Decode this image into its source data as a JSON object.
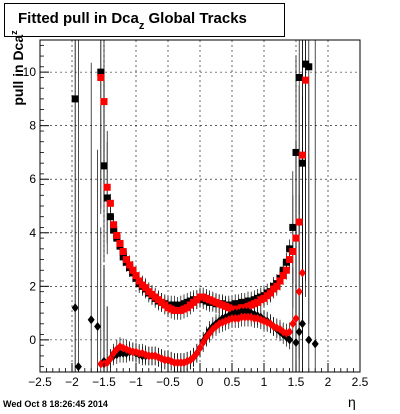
{
  "title": {
    "main": "Fitted pull in Dca",
    "sub": "z",
    "rest": "  Global Tracks"
  },
  "ylabel": {
    "main": "pull in Dca",
    "sub": "z"
  },
  "xlabel": "η",
  "timestamp": "Wed Oct  8 18:26:45 2014",
  "colors": {
    "black_series": "#000000",
    "red_series": "#ff0000",
    "grid": "#000000"
  },
  "chart_data": {
    "type": "scatter",
    "xlim": [
      -2.5,
      2.5
    ],
    "ylim": [
      -1.2,
      11.2
    ],
    "grid": true,
    "x_ticks": [
      -2.5,
      -2,
      -1.5,
      -1,
      -0.5,
      0,
      0.5,
      1,
      1.5,
      2,
      2.5
    ],
    "x_tick_labels": [
      "−2.5",
      "−2",
      "−1.5",
      "−1",
      "−0.5",
      "0",
      "0.5",
      "1",
      "1.5",
      "2",
      "2.5"
    ],
    "y_ticks": [
      0,
      2,
      4,
      6,
      8,
      10
    ],
    "y_tick_labels": [
      "0",
      "2",
      "4",
      "6",
      "8",
      "10"
    ],
    "series": [
      {
        "marker": "square",
        "color": "#000000",
        "x": [
          -1.95,
          -1.55,
          -1.5,
          -1.45,
          -1.4,
          -1.35,
          -1.3,
          -1.25,
          -1.2,
          -1.15,
          -1.1,
          -1.05,
          -1,
          -0.95,
          -0.9,
          -0.85,
          -0.8,
          -0.75,
          -0.7,
          -0.65,
          -0.6,
          -0.55,
          -0.5,
          -0.45,
          -0.4,
          -0.35,
          -0.3,
          -0.25,
          -0.2,
          -0.15,
          -0.1,
          -0.05,
          0,
          0.05,
          0.1,
          0.15,
          0.2,
          0.25,
          0.3,
          0.35,
          0.4,
          0.45,
          0.5,
          0.55,
          0.6,
          0.65,
          0.7,
          0.75,
          0.8,
          0.85,
          0.9,
          0.95,
          1,
          1.05,
          1.1,
          1.15,
          1.2,
          1.25,
          1.3,
          1.35,
          1.4,
          1.45,
          1.5,
          1.55,
          1.6,
          1.65,
          1.7
        ],
        "y": [
          9.0,
          10.0,
          6.5,
          5.3,
          4.6,
          4.1,
          3.8,
          3.5,
          3.1,
          2.9,
          2.7,
          2.5,
          2.3,
          2.1,
          2.0,
          1.9,
          1.75,
          1.65,
          1.55,
          1.45,
          1.4,
          1.35,
          1.3,
          1.3,
          1.3,
          1.25,
          1.3,
          1.35,
          1.4,
          1.45,
          1.5,
          1.5,
          1.55,
          1.5,
          1.45,
          1.4,
          1.4,
          1.35,
          1.35,
          1.35,
          1.3,
          1.3,
          1.3,
          1.35,
          1.35,
          1.4,
          1.4,
          1.45,
          1.45,
          1.5,
          1.55,
          1.6,
          1.65,
          1.75,
          1.8,
          2.0,
          2.1,
          2.3,
          2.6,
          2.9,
          3.4,
          4.2,
          7.0,
          9.8,
          6.6,
          10.3,
          10.2
        ]
      },
      {
        "marker": "square",
        "color": "#ff0000",
        "x": [
          -1.55,
          -1.5,
          -1.45,
          -1.4,
          -1.35,
          -1.3,
          -1.25,
          -1.2,
          -1.15,
          -1.1,
          -1.05,
          -1,
          -0.95,
          -0.9,
          -0.85,
          -0.8,
          -0.75,
          -0.7,
          -0.65,
          -0.6,
          -0.55,
          -0.5,
          -0.45,
          -0.4,
          -0.35,
          -0.3,
          -0.25,
          -0.2,
          -0.15,
          -0.1,
          -0.05,
          0,
          0.05,
          0.1,
          0.15,
          0.2,
          0.25,
          0.3,
          0.35,
          0.4,
          0.45,
          0.5,
          0.55,
          0.6,
          0.65,
          0.7,
          0.75,
          0.8,
          0.85,
          0.9,
          0.95,
          1,
          1.05,
          1.1,
          1.15,
          1.2,
          1.25,
          1.3,
          1.35,
          1.4,
          1.45,
          1.5,
          1.55,
          1.6,
          1.65
        ],
        "y": [
          9.8,
          8.9,
          5.7,
          5.1,
          4.3,
          3.9,
          3.6,
          3.3,
          3.0,
          2.8,
          2.6,
          2.4,
          2.2,
          2.05,
          1.95,
          1.8,
          1.7,
          1.6,
          1.5,
          1.4,
          1.3,
          1.2,
          1.15,
          1.1,
          1.1,
          1.1,
          1.15,
          1.2,
          1.3,
          1.4,
          1.5,
          1.6,
          1.6,
          1.55,
          1.5,
          1.45,
          1.4,
          1.35,
          1.3,
          1.25,
          1.2,
          1.15,
          1.15,
          1.15,
          1.2,
          1.2,
          1.25,
          1.3,
          1.35,
          1.4,
          1.5,
          1.55,
          1.65,
          1.75,
          1.9,
          2.0,
          2.2,
          2.4,
          2.6,
          3.0,
          3.3,
          3.8,
          4.4,
          6.9,
          9.7
        ]
      },
      {
        "marker": "diamond",
        "color": "#000000",
        "x": [
          -1.95,
          -1.9,
          -1.7,
          -1.6,
          -1.5,
          -1.45,
          -1.4,
          -1.35,
          -1.3,
          -1.25,
          -1.2,
          -1.15,
          -1.1,
          -1.05,
          -1,
          -0.95,
          -0.9,
          -0.85,
          -0.8,
          -0.75,
          -0.7,
          -0.65,
          -0.6,
          -0.55,
          -0.5,
          -0.45,
          -0.4,
          -0.35,
          -0.3,
          -0.25,
          -0.2,
          -0.15,
          -0.1,
          -0.05,
          0,
          0.05,
          0.1,
          0.15,
          0.2,
          0.25,
          0.3,
          0.35,
          0.4,
          0.45,
          0.5,
          0.55,
          0.6,
          0.65,
          0.7,
          0.75,
          0.8,
          0.85,
          0.9,
          0.95,
          1,
          1.05,
          1.1,
          1.15,
          1.2,
          1.25,
          1.3,
          1.35,
          1.4,
          1.5,
          1.55,
          1.6,
          1.7,
          1.8
        ],
        "y": [
          1.2,
          -1.0,
          0.75,
          0.5,
          -0.8,
          -0.85,
          -0.7,
          -0.6,
          -0.55,
          -0.5,
          -0.5,
          -0.5,
          -0.45,
          -0.45,
          -0.5,
          -0.55,
          -0.6,
          -0.6,
          -0.6,
          -0.6,
          -0.6,
          -0.65,
          -0.7,
          -0.75,
          -0.75,
          -0.8,
          -0.85,
          -0.85,
          -0.85,
          -0.85,
          -0.8,
          -0.75,
          -0.65,
          -0.5,
          -0.3,
          -0.05,
          0.15,
          0.35,
          0.5,
          0.6,
          0.7,
          0.8,
          0.85,
          0.9,
          0.95,
          1.0,
          1.0,
          1.05,
          1.05,
          1.05,
          1.0,
          0.95,
          0.9,
          0.85,
          0.75,
          0.7,
          0.6,
          0.5,
          0.4,
          0.3,
          0.2,
          0.1,
          0.0,
          -0.1,
          0.3,
          0.6,
          0.0,
          -0.15
        ]
      },
      {
        "marker": "diamond",
        "color": "#ff0000",
        "x": [
          -1.55,
          -1.5,
          -1.45,
          -1.4,
          -1.35,
          -1.3,
          -1.25,
          -1.2,
          -1.15,
          -1.1,
          -1.05,
          -1,
          -0.95,
          -0.9,
          -0.85,
          -0.8,
          -0.75,
          -0.7,
          -0.65,
          -0.6,
          -0.55,
          -0.5,
          -0.45,
          -0.4,
          -0.35,
          -0.3,
          -0.25,
          -0.2,
          -0.15,
          -0.1,
          -0.05,
          0,
          0.05,
          0.1,
          0.15,
          0.2,
          0.25,
          0.3,
          0.35,
          0.4,
          0.45,
          0.5,
          0.55,
          0.6,
          0.65,
          0.7,
          0.75,
          0.8,
          0.85,
          0.9,
          0.95,
          1,
          1.05,
          1.1,
          1.15,
          1.2,
          1.25,
          1.3,
          1.35,
          1.4,
          1.45,
          1.5,
          1.55,
          1.6
        ],
        "y": [
          -0.9,
          -0.9,
          -0.85,
          -0.7,
          -0.5,
          -0.35,
          -0.25,
          -0.3,
          -0.35,
          -0.4,
          -0.45,
          -0.45,
          -0.5,
          -0.5,
          -0.55,
          -0.6,
          -0.6,
          -0.6,
          -0.65,
          -0.7,
          -0.75,
          -0.75,
          -0.8,
          -0.85,
          -0.85,
          -0.85,
          -0.85,
          -0.8,
          -0.75,
          -0.65,
          -0.5,
          -0.3,
          -0.1,
          0.1,
          0.25,
          0.4,
          0.5,
          0.6,
          0.65,
          0.7,
          0.75,
          0.8,
          0.8,
          0.8,
          0.85,
          0.85,
          0.85,
          0.85,
          0.8,
          0.8,
          0.75,
          0.7,
          0.65,
          0.6,
          0.5,
          0.45,
          0.4,
          0.3,
          0.25,
          0.3,
          0.6,
          0.8,
          1.8,
          2.5
        ]
      }
    ]
  }
}
